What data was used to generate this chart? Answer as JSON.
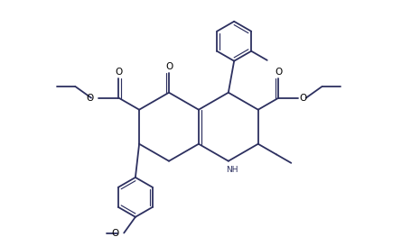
{
  "line_color": "#2d3060",
  "bg_color": "#ffffff",
  "lw": 1.3,
  "lw_inner": 0.85,
  "figsize": [
    4.55,
    2.73
  ],
  "dpi": 100,
  "xlim": [
    -1.0,
    9.5
  ],
  "ylim": [
    -0.2,
    6.2
  ]
}
